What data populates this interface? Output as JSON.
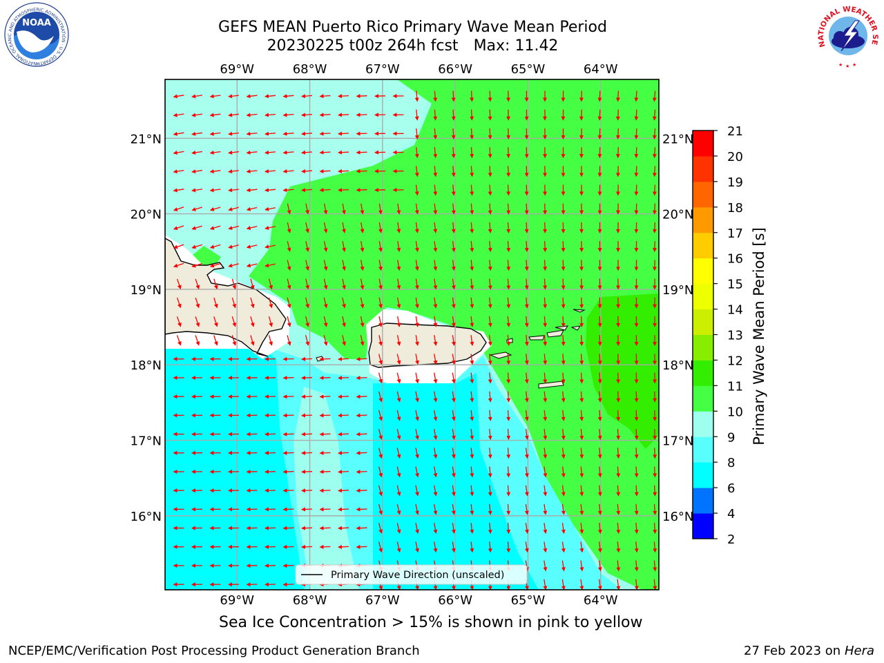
{
  "header": {
    "title_line1": "GEFS MEAN Puerto Rico Primary Wave Mean Period",
    "title_date": "20230225 t00z 264h fcst",
    "title_max": "Max: 11.42"
  },
  "logos": {
    "left": "NOAA",
    "left_ring_text": "NATIONAL OCEANIC AND ATMOSPHERIC ADMINISTRATION · U.S. DEPARTMENT OF COMMERCE",
    "right_ring_text": "NATIONAL WEATHER SERVICE"
  },
  "map": {
    "lon_labels": [
      "69°W",
      "68°W",
      "67°W",
      "66°W",
      "65°W",
      "64°W"
    ],
    "lat_labels": [
      "21°N",
      "20°N",
      "19°N",
      "18°N",
      "17°N",
      "16°N"
    ],
    "lon_values": [
      -69,
      -68,
      -67,
      -66,
      -65,
      -64
    ],
    "lat_values": [
      21,
      20,
      19,
      18,
      17,
      16
    ],
    "lon_range": [
      -69.99,
      -63.2
    ],
    "lat_range": [
      15.02,
      21.78
    ],
    "legend_label": "Primary Wave Direction (unscaled)",
    "arrow_color": "#ff0000",
    "land_color": "#efecdc"
  },
  "colorbar": {
    "label": "Primary Wave Mean Period [s]",
    "ticks": [
      "2",
      "4",
      "6",
      "8",
      "9",
      "10",
      "11",
      "12",
      "13",
      "14",
      "15",
      "16",
      "17",
      "18",
      "19",
      "20",
      "21"
    ],
    "colors": [
      "#0000ff",
      "#0073ff",
      "#00ffff",
      "#59ffff",
      "#9fffee",
      "#44ff44",
      "#33ee00",
      "#88ee00",
      "#ccee00",
      "#eeff00",
      "#ffff00",
      "#ffcc00",
      "#ff9900",
      "#ff6600",
      "#ff3300",
      "#ff0000"
    ]
  },
  "notes": {
    "sea_ice": "Sea Ice Concentration > 15% is shown in pink to yellow"
  },
  "footer": {
    "left": "NCEP/EMC/Verification Post Processing Product Generation Branch",
    "right_date": "27 Feb 2023 on",
    "right_host": "Hera"
  }
}
